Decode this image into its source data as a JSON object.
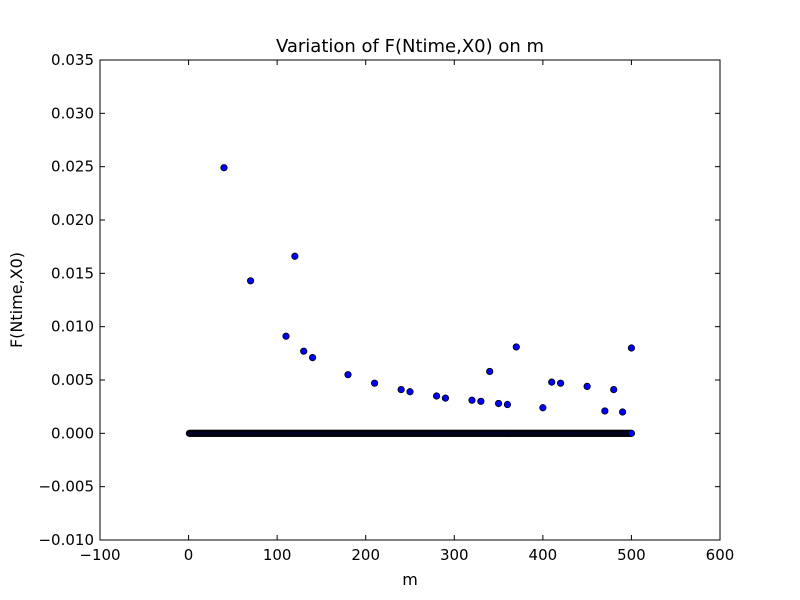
{
  "chart_data": {
    "type": "scatter",
    "title": "Variation of F(Ntime,X0) on m",
    "xlabel": "m",
    "ylabel": "F(Ntime,X0)",
    "xlim": [
      -100,
      600
    ],
    "ylim": [
      -0.01,
      0.035
    ],
    "xticks": [
      -100,
      0,
      100,
      200,
      300,
      400,
      500,
      600
    ],
    "xtick_labels": [
      "−100",
      "0",
      "100",
      "200",
      "300",
      "400",
      "500",
      "600"
    ],
    "yticks": [
      -0.01,
      -0.005,
      0.0,
      0.005,
      0.01,
      0.015,
      0.02,
      0.025,
      0.03,
      0.035
    ],
    "ytick_labels": [
      "−0.010",
      "−0.005",
      "0.000",
      "0.005",
      "0.010",
      "0.015",
      "0.020",
      "0.025",
      "0.030",
      "0.035"
    ],
    "grid": false,
    "marker_color": "#0000ff",
    "marker_edge_color": "#000000",
    "zero_points": {
      "from": 1,
      "to": 499,
      "step": 1,
      "value": 0
    },
    "points": [
      {
        "x": 40,
        "y": 0.0249
      },
      {
        "x": 70,
        "y": 0.0143
      },
      {
        "x": 110,
        "y": 0.0091
      },
      {
        "x": 120,
        "y": 0.0166
      },
      {
        "x": 130,
        "y": 0.0077
      },
      {
        "x": 140,
        "y": 0.0071
      },
      {
        "x": 180,
        "y": 0.0055
      },
      {
        "x": 210,
        "y": 0.0047
      },
      {
        "x": 240,
        "y": 0.0041
      },
      {
        "x": 250,
        "y": 0.0039
      },
      {
        "x": 280,
        "y": 0.0035
      },
      {
        "x": 290,
        "y": 0.0033
      },
      {
        "x": 320,
        "y": 0.0031
      },
      {
        "x": 330,
        "y": 0.003
      },
      {
        "x": 340,
        "y": 0.0058
      },
      {
        "x": 350,
        "y": 0.0028
      },
      {
        "x": 360,
        "y": 0.0027
      },
      {
        "x": 370,
        "y": 0.0081
      },
      {
        "x": 400,
        "y": 0.0024
      },
      {
        "x": 410,
        "y": 0.0048
      },
      {
        "x": 420,
        "y": 0.0047
      },
      {
        "x": 450,
        "y": 0.0044
      },
      {
        "x": 470,
        "y": 0.0021
      },
      {
        "x": 480,
        "y": 0.0041
      },
      {
        "x": 490,
        "y": 0.002
      },
      {
        "x": 500,
        "y": 0.008
      },
      {
        "x": 500,
        "y": 0.0
      }
    ]
  }
}
